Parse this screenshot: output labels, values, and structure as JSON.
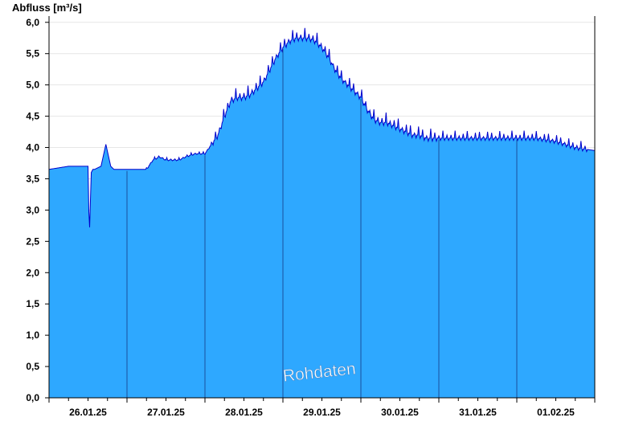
{
  "chart_data": {
    "type": "area",
    "ylabel": "Abfluss [m³/s]",
    "ylim": [
      0,
      6.1
    ],
    "yticks": [
      0,
      0.5,
      1,
      1.5,
      2,
      2.5,
      3,
      3.5,
      4,
      4.5,
      5,
      5.5,
      6
    ],
    "ytick_labels": [
      "0,0",
      "0,5",
      "1,0",
      "1,5",
      "2,0",
      "2,5",
      "3,0",
      "3,5",
      "4,0",
      "4,5",
      "5,0",
      "5,5",
      "6,0"
    ],
    "xlim_days": [
      0,
      7
    ],
    "xticks": [
      "26.01.25",
      "27.01.25",
      "28.01.25",
      "29.01.25",
      "30.01.25",
      "31.01.25",
      "01.02.25"
    ],
    "grid": true,
    "watermark": "Rohdaten",
    "colors": {
      "fill": "#2ea8ff",
      "line": "#0000cc",
      "day_divider": "#1a4f9e",
      "grid": "#e6e6e6"
    },
    "series": [
      {
        "x_hours": [
          0,
          6,
          12,
          12.4,
          13,
          13.5,
          14,
          16,
          17.5,
          19,
          20,
          22,
          30,
          32,
          34,
          36,
          40,
          42,
          45,
          48,
          50,
          52,
          54,
          56,
          58,
          60,
          62,
          64,
          66,
          68,
          70,
          72,
          74,
          76,
          78,
          80,
          82,
          84,
          86,
          88,
          90,
          92,
          94,
          96,
          98,
          100,
          102,
          104,
          106,
          108,
          110,
          112,
          114,
          116,
          118,
          120,
          126,
          132,
          138,
          144,
          150,
          156,
          162,
          168
        ],
        "y": [
          3.65,
          3.7,
          3.7,
          2.55,
          3.6,
          3.65,
          3.65,
          3.7,
          4.05,
          3.7,
          3.65,
          3.65,
          3.65,
          3.8,
          3.85,
          3.8,
          3.8,
          3.85,
          3.9,
          3.9,
          4.05,
          4.2,
          4.5,
          4.75,
          4.8,
          4.8,
          4.85,
          4.95,
          5.05,
          5.25,
          5.45,
          5.6,
          5.7,
          5.75,
          5.75,
          5.75,
          5.7,
          5.6,
          5.45,
          5.25,
          5.1,
          5.0,
          4.9,
          4.8,
          4.6,
          4.45,
          4.4,
          4.4,
          4.35,
          4.3,
          4.25,
          4.2,
          4.2,
          4.15,
          4.15,
          4.15,
          4.15,
          4.15,
          4.15,
          4.15,
          4.15,
          4.1,
          4.0,
          3.95
        ]
      }
    ]
  }
}
